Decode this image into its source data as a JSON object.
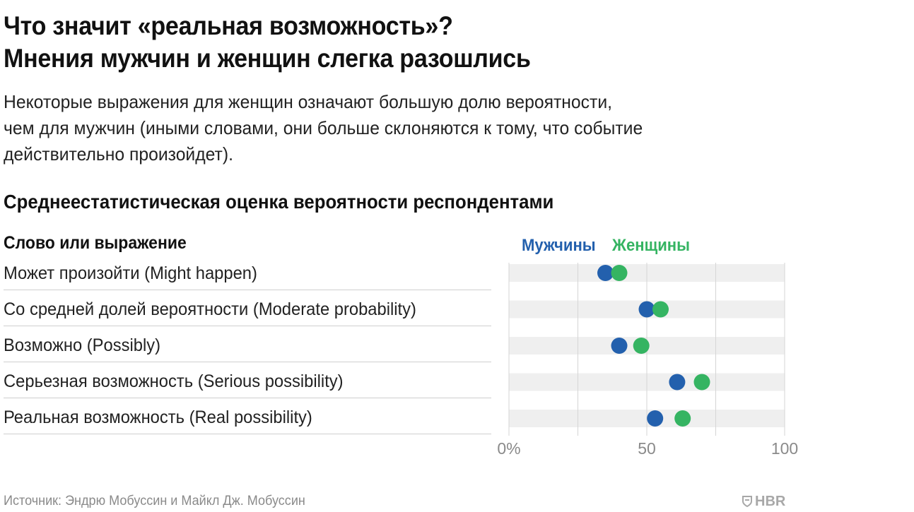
{
  "title_line1": "Что значит «реальная возможность»?",
  "title_line2": "Мнения мужчин и женщин слегка разошлись",
  "subtitle_line1": "Некоторые выражения для женщин означают большую долю вероятности,",
  "subtitle_line2": "чем для мужчин (иными словами, они больше склоняются к тому, что событие",
  "subtitle_line3": "действительно произойдет).",
  "section_title": "Среднеестатистическая оценка вероятности респондентами",
  "column_header": "Слово или выражение",
  "source": "Источник: Эндрю Мобуссин и Майкл Дж. Мобуссин",
  "logo_text": "HBR",
  "logo_icon": "shield-icon",
  "colors": {
    "men": "#2360ad",
    "women": "#35b462",
    "band": "#efefef",
    "grid": "#d5d5d5"
  },
  "chart_data": {
    "type": "scatter",
    "categories": [
      "Может произойти (Might happen)",
      "Со средней долей вероятности (Moderate probability)",
      "Возможно (Possibly)",
      "Серьезная возможность (Serious possibility)",
      "Реальная возможность (Real possibility)"
    ],
    "series": [
      {
        "name": "Мужчины",
        "values": [
          35,
          50,
          40,
          61,
          53
        ]
      },
      {
        "name": "Женщины",
        "values": [
          40,
          55,
          48,
          70,
          63
        ]
      }
    ],
    "xlim": [
      0,
      100
    ],
    "xticks": [
      0,
      50,
      100
    ],
    "xtick_labels": [
      "0%",
      "50",
      "100"
    ],
    "grid": true,
    "legend_position": "top"
  }
}
